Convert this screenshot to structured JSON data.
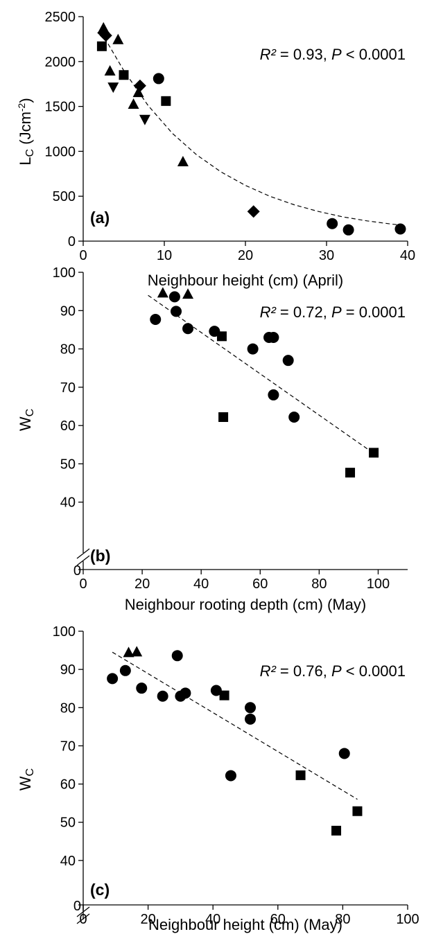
{
  "chart_data": [
    {
      "type": "scatter",
      "panel_label": "(a)",
      "xlabel": "Neighbour height (cm) (April)",
      "ylabel": {
        "main": "L",
        "sub": "C",
        "unit_prefix": " (Jcm",
        "unit_sup": "-2",
        "unit_suffix": ")"
      },
      "xlim": [
        0,
        40
      ],
      "ylim": [
        0,
        2500
      ],
      "x_ticks": [
        0,
        10,
        20,
        30,
        40
      ],
      "y_ticks": [
        0,
        500,
        1000,
        1500,
        2000,
        2500
      ],
      "axis_break": false,
      "stat": {
        "r2_label": "R²",
        "r2_value": " = 0.93, ",
        "p_label": "P",
        "p_value": " < 0.0001"
      },
      "fit": {
        "type": "exponential",
        "points": [
          [
            2.2,
            2330
          ],
          [
            5,
            1900
          ],
          [
            8,
            1510
          ],
          [
            11,
            1200
          ],
          [
            14,
            960
          ],
          [
            17,
            770
          ],
          [
            20,
            620
          ],
          [
            23,
            500
          ],
          [
            26,
            405
          ],
          [
            29,
            330
          ],
          [
            32,
            270
          ],
          [
            35,
            225
          ],
          [
            38,
            190
          ],
          [
            39.5,
            175
          ]
        ]
      },
      "series": [
        {
          "marker": "diamond",
          "points": [
            [
              2.5,
              2320
            ],
            [
              2.8,
              2290
            ],
            [
              7,
              1730
            ],
            [
              21,
              330
            ]
          ]
        },
        {
          "marker": "triangle-up",
          "points": [
            [
              2.5,
              2370
            ],
            [
              3.3,
              1890
            ],
            [
              4.3,
              2240
            ],
            [
              6.2,
              1520
            ],
            [
              6.8,
              1650
            ],
            [
              12.3,
              880
            ]
          ]
        },
        {
          "marker": "triangle-down",
          "points": [
            [
              3.7,
              1720
            ],
            [
              7.6,
              1360
            ]
          ]
        },
        {
          "marker": "square",
          "points": [
            [
              2.3,
              2170
            ],
            [
              5,
              1850
            ],
            [
              10.2,
              1560
            ]
          ]
        },
        {
          "marker": "circle",
          "points": [
            [
              9.3,
              1810
            ],
            [
              30.7,
              195
            ],
            [
              32.7,
              125
            ],
            [
              39.1,
              135
            ]
          ]
        }
      ]
    },
    {
      "type": "scatter",
      "panel_label": "(b)",
      "xlabel": "Neighbour rooting depth (cm) (May)",
      "ylabel": {
        "main": "W",
        "sub": "C",
        "unit_prefix": "",
        "unit_sup": "",
        "unit_suffix": ""
      },
      "xlim": [
        0,
        110
      ],
      "ylim": [
        30,
        100
      ],
      "x_ticks": [
        0,
        20,
        40,
        60,
        80,
        100
      ],
      "y_ticks": [
        40,
        50,
        60,
        70,
        80,
        90,
        100
      ],
      "axis_break": true,
      "break_label": "0",
      "stat": {
        "r2_label": "R²",
        "r2_value": " = 0.72, ",
        "p_label": "P",
        "p_value": " = 0.0001"
      },
      "fit": {
        "type": "linear",
        "points": [
          [
            22,
            94
          ],
          [
            98,
            53
          ]
        ]
      },
      "series": [
        {
          "marker": "triangle-up",
          "points": [
            [
              27,
              94.5
            ],
            [
              35.5,
              94.2
            ]
          ]
        },
        {
          "marker": "square",
          "points": [
            [
              47,
              83.3
            ],
            [
              47.5,
              62.2
            ],
            [
              90.5,
              47.7
            ],
            [
              98.5,
              52.9
            ]
          ]
        },
        {
          "marker": "circle",
          "points": [
            [
              24.5,
              87.7
            ],
            [
              31,
              93.6
            ],
            [
              31.5,
              89.8
            ],
            [
              35.5,
              85.3
            ],
            [
              44.5,
              84.6
            ],
            [
              57.5,
              80
            ],
            [
              63,
              83
            ],
            [
              64.5,
              83
            ],
            [
              64.5,
              68
            ],
            [
              69.5,
              77
            ],
            [
              71.5,
              62.2
            ]
          ]
        }
      ]
    },
    {
      "type": "scatter",
      "panel_label": "(c)",
      "xlabel": "Neighbour height (cm) (May)",
      "ylabel": {
        "main": "W",
        "sub": "C",
        "unit_prefix": "",
        "unit_sup": "",
        "unit_suffix": ""
      },
      "xlim": [
        0,
        100
      ],
      "ylim": [
        30,
        100
      ],
      "x_ticks": [
        0,
        20,
        40,
        60,
        80,
        100
      ],
      "y_ticks": [
        40,
        50,
        60,
        70,
        80,
        90,
        100
      ],
      "axis_break": true,
      "break_label": "0",
      "stat": {
        "r2_label": "R²",
        "r2_value": " = 0.76, ",
        "p_label": "P",
        "p_value": " < 0.0001"
      },
      "fit": {
        "type": "linear",
        "points": [
          [
            9,
            94.5
          ],
          [
            84.5,
            56
          ]
        ]
      },
      "series": [
        {
          "marker": "triangle-up",
          "points": [
            [
              14,
              94.3
            ],
            [
              16.5,
              94.5
            ]
          ]
        },
        {
          "marker": "square",
          "points": [
            [
              43.5,
              83.2
            ],
            [
              67,
              62.3
            ],
            [
              78,
              47.8
            ],
            [
              84.5,
              52.9
            ]
          ]
        },
        {
          "marker": "circle",
          "points": [
            [
              9,
              87.6
            ],
            [
              13,
              89.7
            ],
            [
              18,
              85.1
            ],
            [
              24.5,
              83
            ],
            [
              29,
              93.6
            ],
            [
              30,
              83
            ],
            [
              31.5,
              83.8
            ],
            [
              41,
              84.5
            ],
            [
              45.5,
              62.2
            ],
            [
              51.5,
              80
            ],
            [
              51.5,
              77
            ],
            [
              80.5,
              68
            ]
          ]
        }
      ]
    }
  ]
}
